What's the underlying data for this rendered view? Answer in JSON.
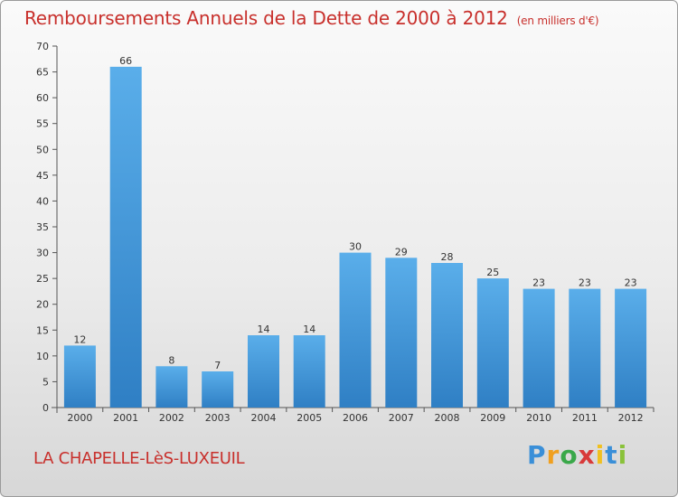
{
  "chart_data": {
    "type": "bar",
    "title": "Remboursements Annuels de la Dette de 2000 à 2012",
    "unit": "(en milliers d'€)",
    "categories": [
      "2000",
      "2001",
      "2002",
      "2003",
      "2004",
      "2005",
      "2006",
      "2007",
      "2008",
      "2009",
      "2010",
      "2011",
      "2012"
    ],
    "values": [
      12,
      66,
      8,
      7,
      14,
      14,
      30,
      29,
      28,
      25,
      23,
      23,
      23
    ],
    "ylim": [
      0,
      70
    ],
    "yticks": [
      0,
      5,
      10,
      15,
      20,
      25,
      30,
      35,
      40,
      45,
      50,
      55,
      60,
      65,
      70
    ],
    "xlabel": "",
    "ylabel": "",
    "grid": false,
    "bar_color": "#4a9fe0"
  },
  "commune": "LA CHAPELLE-LèS-LUXEUIL",
  "logo": {
    "letters": [
      "P",
      "r",
      "o",
      "x",
      "i",
      "t",
      "i"
    ],
    "colors": [
      "#3a8fd8",
      "#f0a020",
      "#3aa84a",
      "#d83a3a",
      "#f0c020",
      "#3a8fd8",
      "#8ac23a"
    ]
  }
}
